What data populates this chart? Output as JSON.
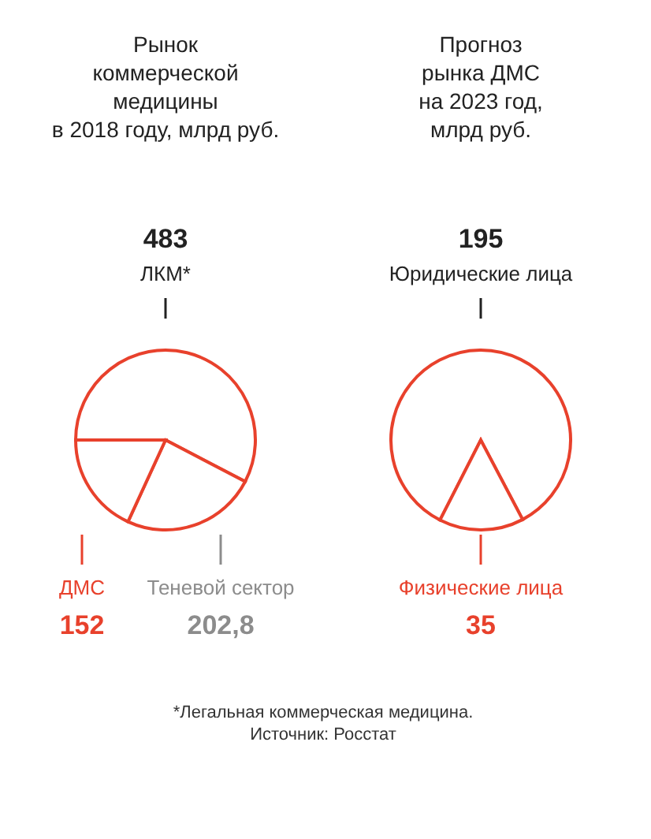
{
  "chart_data": [
    {
      "type": "pie",
      "title": [
        "Рынок",
        "коммерческой",
        "медицины",
        "в 2018 году, млрд руб."
      ],
      "categories": [
        "ЛКМ*",
        "Теневой сектор",
        "ДМС"
      ],
      "values": [
        483,
        202.8,
        152
      ],
      "value_labels": [
        "483",
        "202,8",
        "152"
      ],
      "colors": [
        "#ffffff",
        "#ffffff",
        "#ffffff"
      ],
      "annotations": [
        "*Легальная коммерческая медицина.",
        "Источник: Росстат"
      ]
    },
    {
      "type": "pie",
      "title": [
        "Прогноз",
        "рынка ДМС",
        "на 2023 год,",
        "млрд руб."
      ],
      "categories": [
        "Юридические лица",
        "Физические лица"
      ],
      "values": [
        195,
        35
      ],
      "value_labels": [
        "195",
        "35"
      ],
      "colors": [
        "#ffffff",
        "#ffffff"
      ]
    }
  ]
}
